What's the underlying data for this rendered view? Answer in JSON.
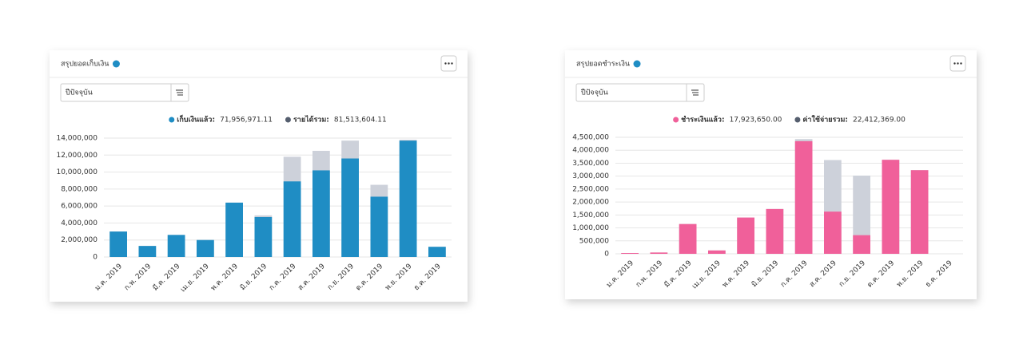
{
  "chart_data": [
    {
      "type": "bar",
      "title": "สรุปยอดเก็บเงิน",
      "filter": "ปีปัจจุบัน",
      "categories": [
        "ม.ค. 2019",
        "ก.พ. 2019",
        "มี.ค. 2019",
        "เม.ย. 2019",
        "พ.ค. 2019",
        "มิ.ย. 2019",
        "ก.ค. 2019",
        "ส.ค. 2019",
        "ก.ย. 2019",
        "ต.ค. 2019",
        "พ.ย. 2019",
        "ธ.ค. 2019"
      ],
      "series": [
        {
          "name": "เก็บเงินแล้ว:",
          "color": "#1f8dc4",
          "summary": "71,956,971.11",
          "values": [
            3000000,
            1300000,
            2600000,
            2000000,
            6400000,
            4700000,
            8900000,
            10200000,
            11600000,
            7100000,
            13700000,
            1200000
          ]
        },
        {
          "name": "รายได้รวม:",
          "color": "#cdd1da",
          "summary": "81,513,604.11",
          "values": [
            3000000,
            1300000,
            2600000,
            2000000,
            6400000,
            4900000,
            11800000,
            12500000,
            13700000,
            8500000,
            13800000,
            1200000
          ]
        }
      ],
      "ylim": [
        0,
        14000000
      ],
      "yticks": [
        0,
        {
          "value": 2000000,
          "label": "2,000,000"
        },
        {
          "value": 4000000,
          "label": "4,000,000"
        },
        {
          "value": 6000000,
          "label": "6,000,000"
        },
        {
          "value": 8000000,
          "label": "8,000,000"
        },
        {
          "value": 10000000,
          "label": "10,000,000"
        },
        {
          "value": 12000000,
          "label": "12,000,000"
        },
        {
          "value": 14000000,
          "label": "14,000,000"
        }
      ],
      "grid": true
    },
    {
      "type": "bar",
      "title": "สรุปยอดชำระเงิน",
      "filter": "ปีปัจจุบัน",
      "categories": [
        "ม.ค. 2019",
        "ก.พ. 2019",
        "มี.ค. 2019",
        "เม.ย. 2019",
        "พ.ค. 2019",
        "มิ.ย. 2019",
        "ก.ค. 2019",
        "ส.ค. 2019",
        "ก.ย. 2019",
        "ต.ค. 2019",
        "พ.ย. 2019",
        "ธ.ค. 2019"
      ],
      "series": [
        {
          "name": "ชำระเงินแล้ว:",
          "color": "#f0609a",
          "summary": "17,923,650.00",
          "values": [
            30000,
            50000,
            1150000,
            130000,
            1400000,
            1730000,
            4350000,
            1630000,
            720000,
            3630000,
            3230000,
            0
          ]
        },
        {
          "name": "ค่าใช้จ่ายรวม:",
          "color": "#cdd1da",
          "summary": "22,412,369.00",
          "values": [
            30000,
            50000,
            1150000,
            130000,
            1400000,
            1730000,
            4430000,
            3620000,
            3020000,
            3630000,
            3230000,
            0
          ]
        }
      ],
      "ylim": [
        0,
        4500000
      ],
      "yticks": [
        0,
        {
          "value": 500000,
          "label": "500,000"
        },
        {
          "value": 1000000,
          "label": "1,000,000"
        },
        {
          "value": 1500000,
          "label": "1,500,000"
        },
        {
          "value": 2000000,
          "label": "2,000,000"
        },
        {
          "value": 2500000,
          "label": "2,500,000"
        },
        {
          "value": 3000000,
          "label": "3,000,000"
        },
        {
          "value": 3500000,
          "label": "3,500,000"
        },
        {
          "value": 4000000,
          "label": "4,000,000"
        },
        {
          "value": 4500000,
          "label": "4,500,000"
        }
      ],
      "grid": true
    }
  ]
}
